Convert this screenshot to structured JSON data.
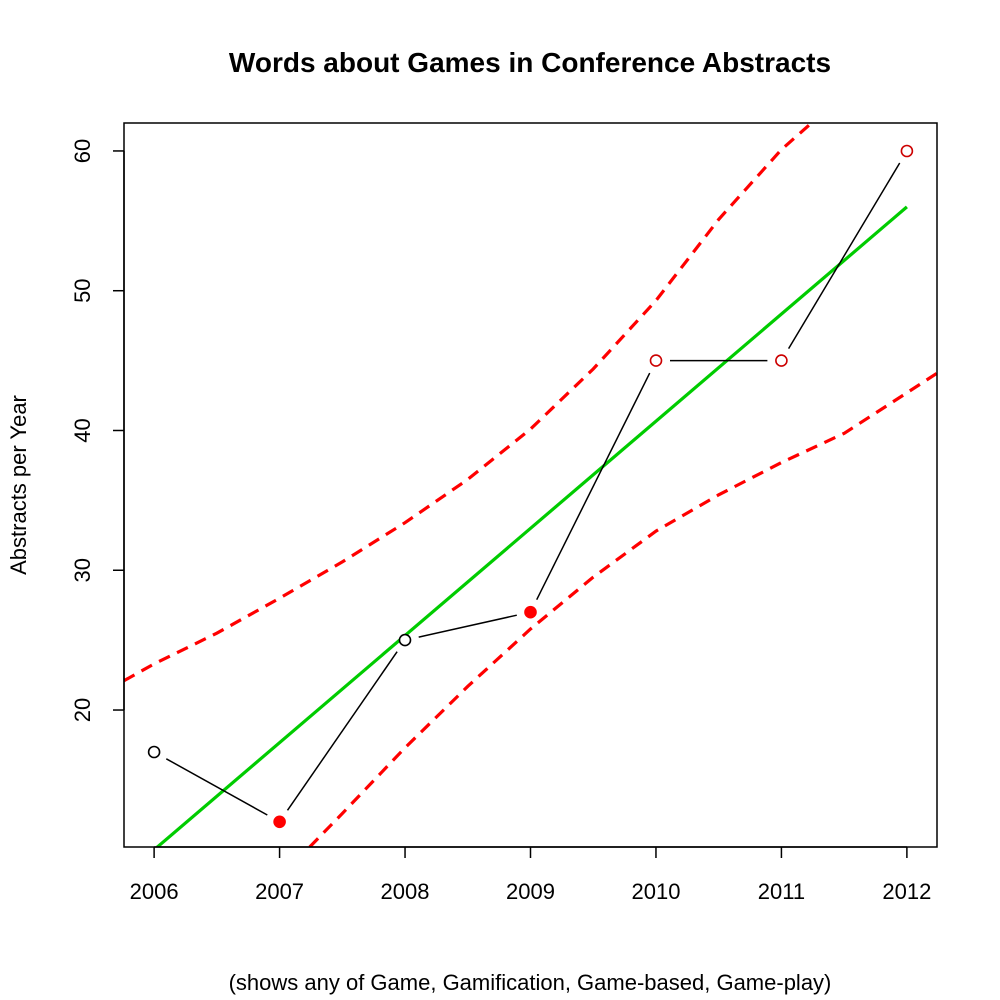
{
  "chart_data": {
    "type": "line",
    "title": "Words about Games in Conference Abstracts",
    "xlabel": "(shows any of Game, Gamification, Game-based, Game-play)",
    "ylabel": "Abstracts per Year",
    "xlim": [
      2005.76,
      2012.24
    ],
    "ylim": [
      10.2,
      62.0
    ],
    "x_ticks": [
      2006,
      2007,
      2008,
      2009,
      2010,
      2011,
      2012
    ],
    "y_ticks": [
      20,
      30,
      40,
      50,
      60
    ],
    "grid": false,
    "legend": "none",
    "series": [
      {
        "x": [
          2006,
          2007,
          2008,
          2009,
          2010,
          2011,
          2012
        ],
        "values": [
          17,
          12,
          25,
          27,
          45,
          45,
          60
        ],
        "point_fill": [
          "#ffffff",
          "#ff0000",
          "#ffffff",
          "#ff0000",
          "#ffffff",
          "#ffffff",
          "#ffffff"
        ],
        "point_stroke": [
          "#000000",
          "#ff0000",
          "#000000",
          "#ff0000",
          "#cc0000",
          "#cc0000",
          "#cc0000"
        ],
        "line_color": "#000000"
      },
      {
        "x": [
          2006,
          2012
        ],
        "values": [
          10.0,
          56.0
        ],
        "line_color": "#00cc00"
      },
      {
        "x": [
          2005.76,
          2006,
          2006.5,
          2007,
          2007.5,
          2008,
          2008.5,
          2009,
          2009.5,
          2010,
          2010.5,
          2011,
          2011.24
        ],
        "values": [
          22.1,
          23.3,
          25.5,
          28.0,
          30.6,
          33.4,
          36.5,
          40.1,
          44.4,
          49.3,
          55.1,
          60.1,
          62.0
        ],
        "line_color": "#ff0000",
        "dashed": true
      },
      {
        "x": [
          2007.24,
          2007.5,
          2008,
          2008.5,
          2009,
          2009.5,
          2010,
          2010.5,
          2011,
          2011.5,
          2012,
          2012.24
        ],
        "values": [
          10.2,
          12.6,
          17.3,
          21.7,
          25.8,
          29.5,
          32.8,
          35.4,
          37.7,
          39.8,
          42.7,
          44.1
        ],
        "line_color": "#ff0000",
        "dashed": true
      }
    ]
  }
}
